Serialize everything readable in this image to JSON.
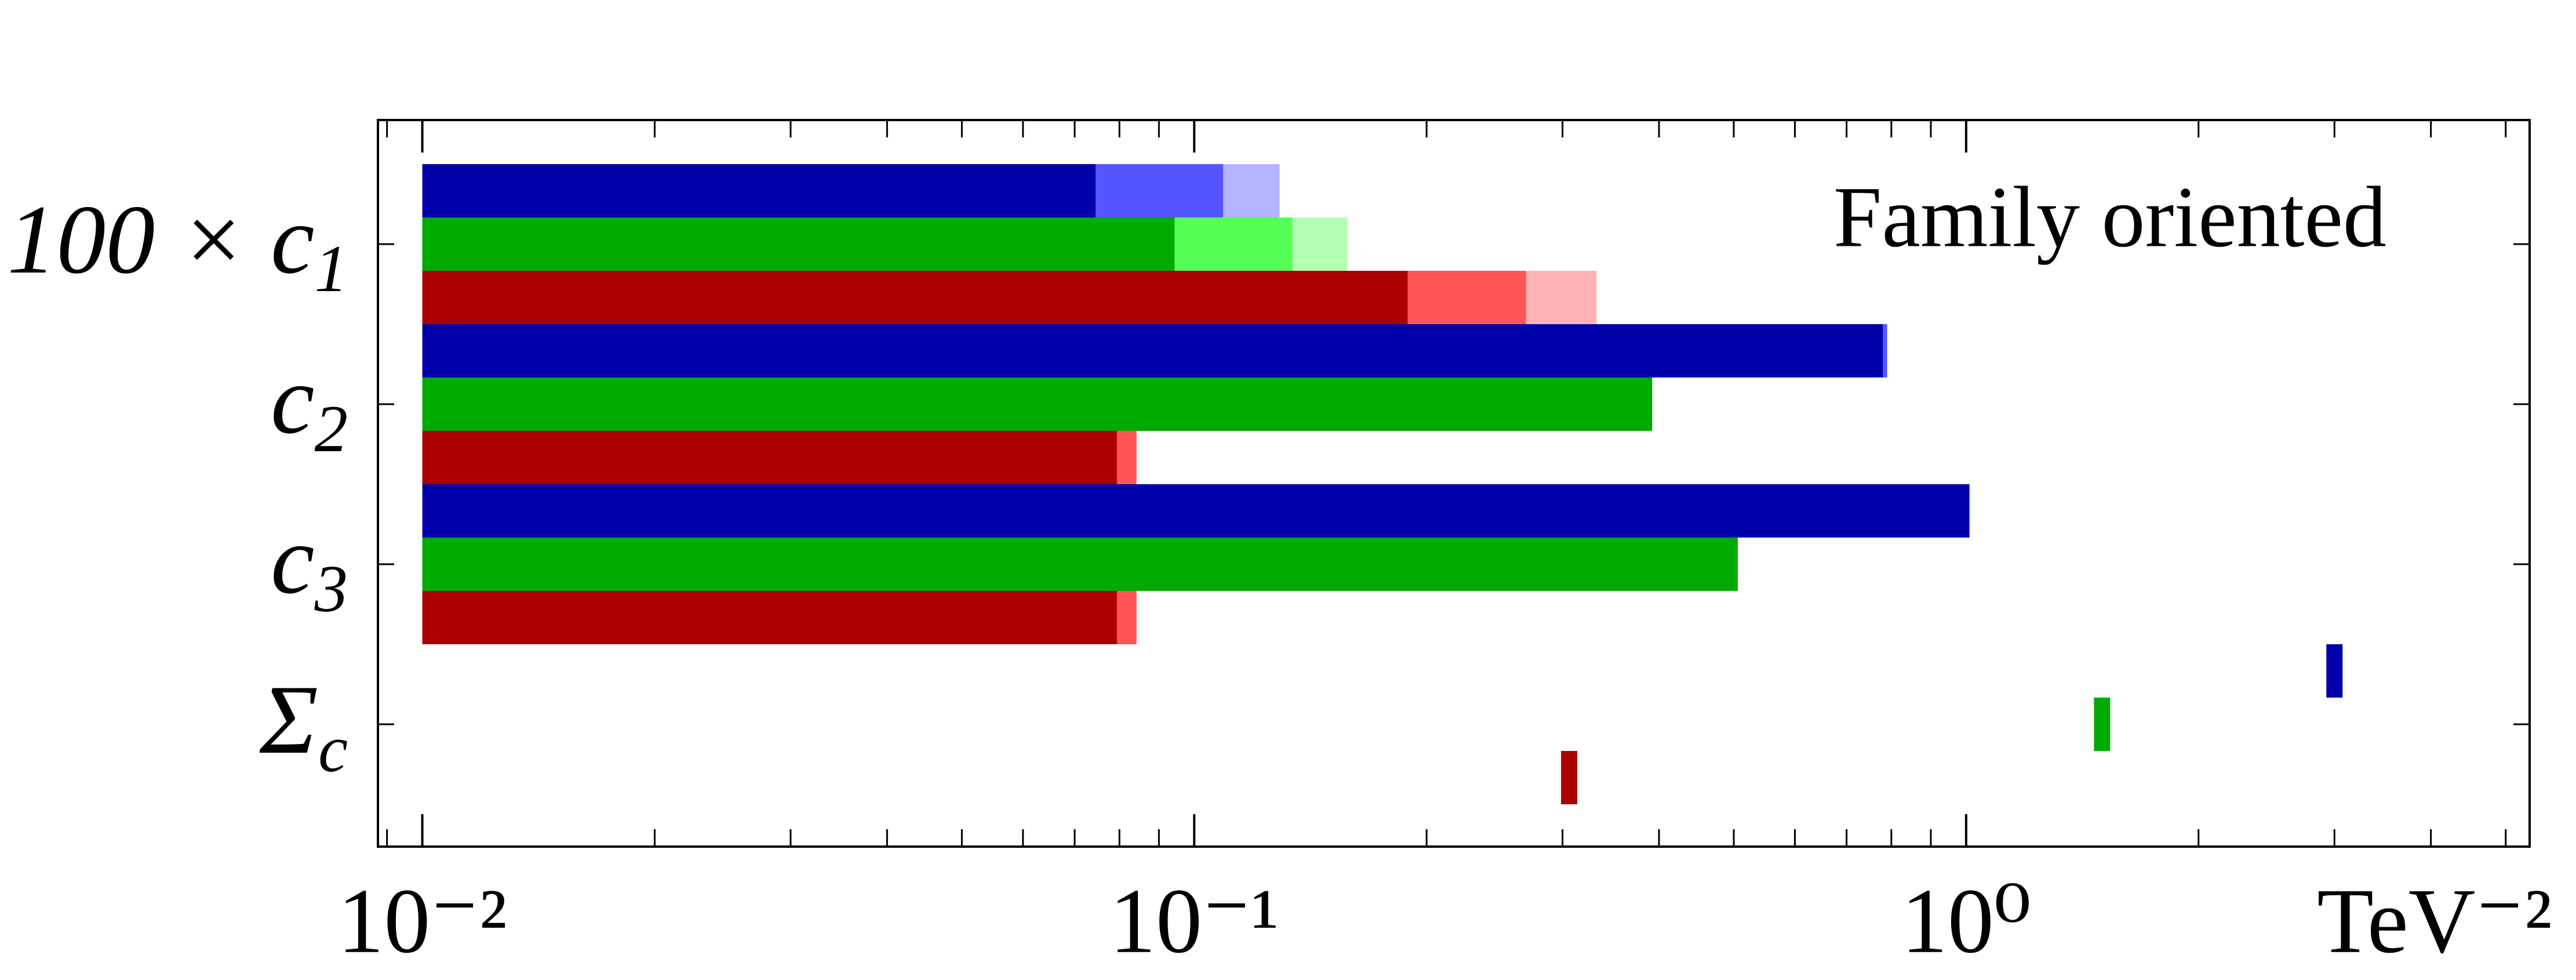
{
  "chart_data": {
    "type": "bar",
    "orientation": "horizontal",
    "log_x": true,
    "annotation": "Family oriented",
    "x_label": "TeV⁻²",
    "categories": [
      {
        "base": "100 × c",
        "sub": "1"
      },
      {
        "base": "c",
        "sub": "2"
      },
      {
        "base": "c",
        "sub": "3"
      },
      {
        "base": "Σ",
        "sub": "c"
      }
    ],
    "marker": [
      "bar",
      "bar",
      "bar",
      "tick"
    ],
    "bar_base": 0.01,
    "series": [
      {
        "color": "#0000aa",
        "values": [
          0.0745,
          0.78,
          1.01,
          3.0
        ]
      },
      {
        "color": "#5555ff",
        "values": [
          0.109,
          0.79,
          null,
          null
        ]
      },
      {
        "color": "#b3b3ff",
        "values": [
          0.129,
          null,
          null,
          null
        ]
      },
      {
        "color": "#00aa00",
        "values": [
          0.0943,
          0.392,
          0.506,
          1.5
        ]
      },
      {
        "color": "#55ff55",
        "values": [
          0.134,
          null,
          null,
          null
        ]
      },
      {
        "color": "#b3ffb3",
        "values": [
          0.158,
          null,
          null,
          null
        ]
      },
      {
        "color": "#aa0000",
        "values": [
          0.189,
          0.0794,
          0.0794,
          0.306
        ]
      },
      {
        "color": "#ff5555",
        "values": [
          0.269,
          0.0842,
          0.0842,
          null
        ]
      },
      {
        "color": "#ffb3b3",
        "values": [
          0.332,
          null,
          null,
          null
        ]
      }
    ],
    "xlim": [
      0.00876,
      5.37
    ],
    "xticks": [
      {
        "value": 0.01,
        "label": "10⁻²"
      },
      {
        "value": 0.1,
        "label": "10⁻¹"
      },
      {
        "value": 1,
        "label": "10⁰"
      }
    ],
    "minor_xticks": [
      0.009,
      0.02,
      0.03,
      0.04,
      0.05,
      0.06,
      0.07,
      0.08,
      0.09,
      0.2,
      0.3,
      0.4,
      0.5,
      0.6,
      0.7,
      0.8,
      0.9,
      2,
      3,
      4,
      5
    ]
  }
}
